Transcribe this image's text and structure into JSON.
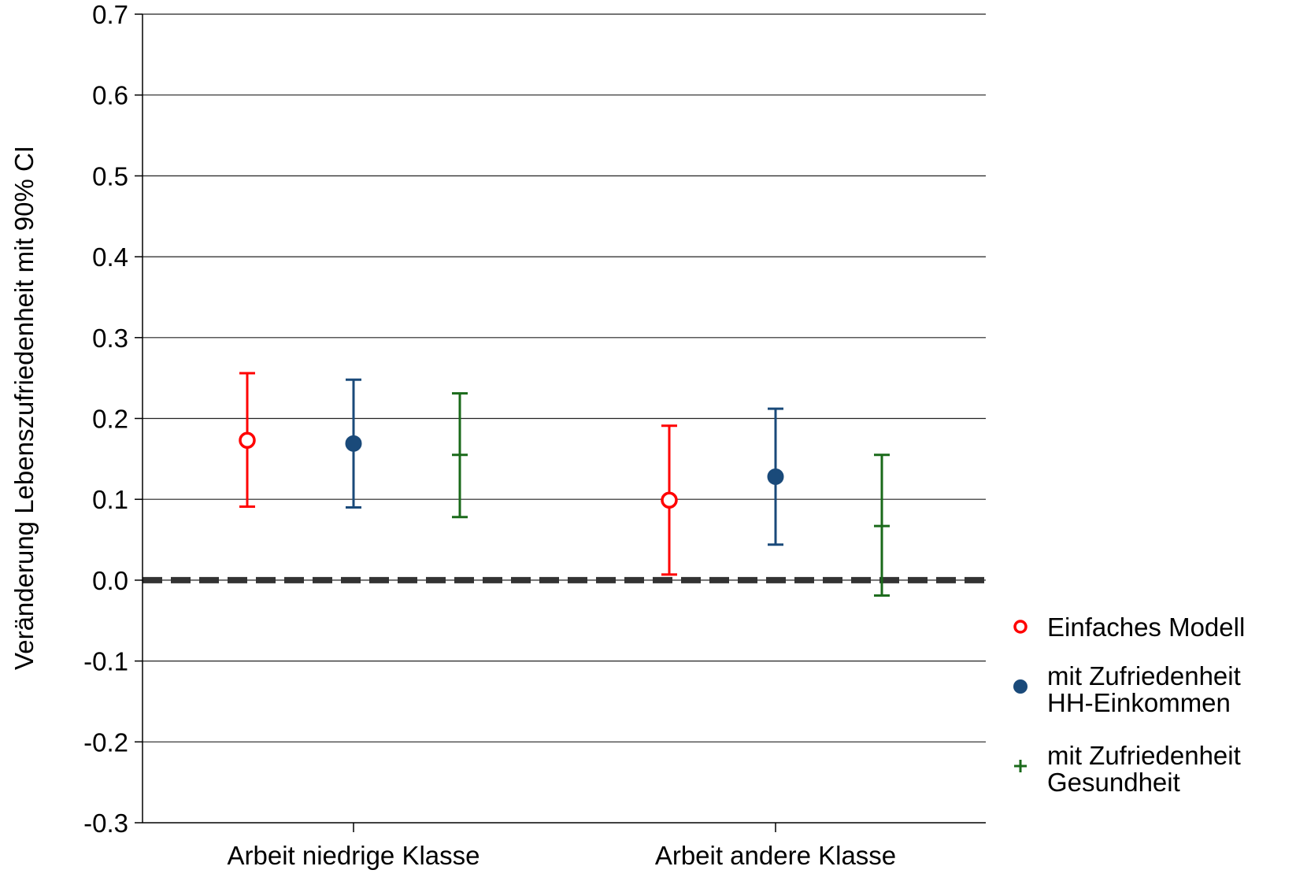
{
  "chart_data": {
    "type": "scatter",
    "title": "",
    "xlabel": "",
    "ylabel": "Veränderung Lebenszufriedenheit mit 90% CI",
    "ylim": [
      -0.3,
      0.7
    ],
    "yticks": [
      "0.7",
      "0.6",
      "0.5",
      "0.4",
      "0.3",
      "0.2",
      "0.1",
      "0.0",
      "-0.1",
      "-0.2",
      "-0.3"
    ],
    "grid": "horizontal",
    "reference_line": {
      "y": 0.0,
      "style": "dashed"
    },
    "legend_position": "right",
    "categories": [
      "Arbeit niedrige Klasse",
      "Arbeit andere Klasse"
    ],
    "series": [
      {
        "name": "Einfaches Modell",
        "name_lines": [
          "Einfaches Modell"
        ],
        "color": "#ff0000",
        "marker": "open-circle",
        "points": [
          {
            "category": "Arbeit niedrige Klasse",
            "value": 0.173,
            "ci": [
              0.091,
              0.256
            ]
          },
          {
            "category": "Arbeit andere Klasse",
            "value": 0.099,
            "ci": [
              0.007,
              0.191
            ]
          }
        ]
      },
      {
        "name": "mit Zufriedenheit HH-Einkommen",
        "name_lines": [
          "mit Zufriedenheit",
          "HH-Einkommen"
        ],
        "color": "#1a4a7a",
        "marker": "filled-circle",
        "points": [
          {
            "category": "Arbeit niedrige Klasse",
            "value": 0.169,
            "ci": [
              0.09,
              0.248
            ]
          },
          {
            "category": "Arbeit andere Klasse",
            "value": 0.128,
            "ci": [
              0.044,
              0.212
            ]
          }
        ]
      },
      {
        "name": "mit Zufriedenheit Gesundheit",
        "name_lines": [
          "mit Zufriedenheit",
          "Gesundheit"
        ],
        "color": "#1a6a1a",
        "marker": "plus",
        "points": [
          {
            "category": "Arbeit niedrige Klasse",
            "value": 0.155,
            "ci": [
              0.078,
              0.231
            ]
          },
          {
            "category": "Arbeit andere Klasse",
            "value": 0.067,
            "ci": [
              -0.019,
              0.155
            ]
          }
        ]
      }
    ]
  }
}
